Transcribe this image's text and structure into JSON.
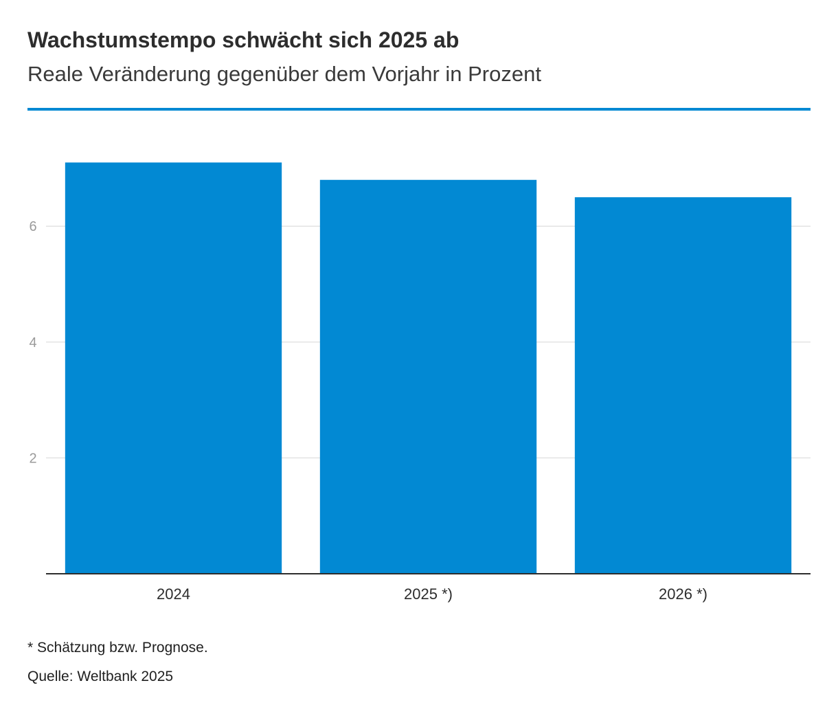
{
  "header": {
    "title": "Wachstumstempo schwächt sich 2025 ab",
    "subtitle": "Reale Veränderung gegenüber dem Vorjahr in Prozent"
  },
  "footer": {
    "footnote": "* Schätzung bzw. Prognose.",
    "source": "Quelle: Weltbank 2025"
  },
  "colors": {
    "accent": "#0289d3",
    "bar": "#0289d3",
    "grid": "#e3e3e3",
    "tick_text": "#9a9a9a",
    "axis_text": "#2d2d2d",
    "baseline": "#2d2d2d"
  },
  "chart_data": {
    "type": "bar",
    "title": "Wachstumstempo schwächt sich 2025 ab",
    "subtitle": "Reale Veränderung gegenüber dem Vorjahr in Prozent",
    "categories": [
      "2024",
      "2025 *)",
      "2026 *)"
    ],
    "values": [
      7.1,
      6.8,
      6.5
    ],
    "ylim": [
      0,
      7.5
    ],
    "yticks": [
      2,
      4,
      6
    ],
    "grid": true,
    "xlabel": "",
    "ylabel": ""
  }
}
